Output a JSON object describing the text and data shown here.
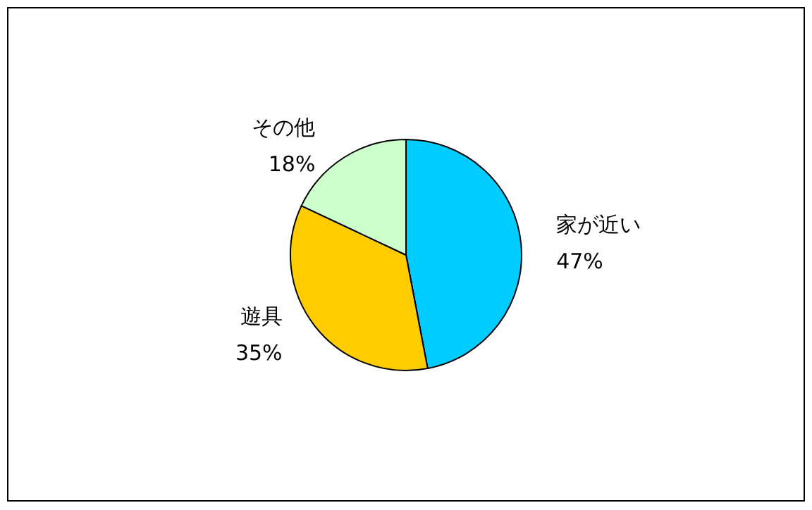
{
  "chart_data": {
    "type": "pie",
    "categories": [
      "家が近い",
      "遊具",
      "その他"
    ],
    "values": [
      47,
      35,
      18
    ],
    "colors": [
      "#00ccff",
      "#ffcc00",
      "#ccffcc"
    ],
    "value_labels": [
      "47%",
      "35%",
      "18%"
    ]
  }
}
